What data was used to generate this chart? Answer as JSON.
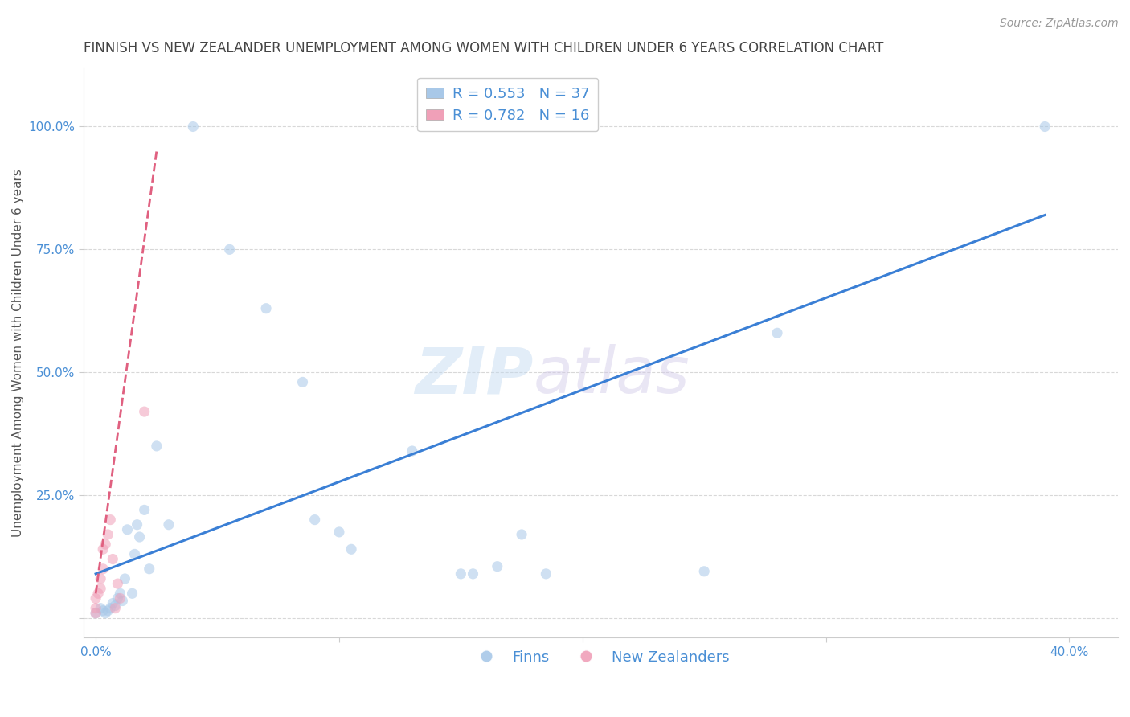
{
  "title": "FINNISH VS NEW ZEALANDER UNEMPLOYMENT AMONG WOMEN WITH CHILDREN UNDER 6 YEARS CORRELATION CHART",
  "source": "Source: ZipAtlas.com",
  "ylabel": "Unemployment Among Women with Children Under 6 years",
  "xlim": [
    -0.005,
    0.42
  ],
  "ylim": [
    -0.04,
    1.12
  ],
  "xticks": [
    0.0,
    0.1,
    0.2,
    0.3,
    0.4
  ],
  "xtick_labels": [
    "0.0%",
    "",
    "",
    "",
    "40.0%"
  ],
  "yticks": [
    0.0,
    0.25,
    0.5,
    0.75,
    1.0
  ],
  "ytick_labels": [
    "",
    "25.0%",
    "50.0%",
    "75.0%",
    "100.0%"
  ],
  "background_color": "#ffffff",
  "grid_color": "#d8d8d8",
  "watermark_zip": "ZIP",
  "watermark_atlas": "atlas",
  "finns_color": "#a8c8e8",
  "nz_color": "#f0a0b8",
  "finns_line_color": "#3a7fd5",
  "nz_line_color": "#e06080",
  "finns_R": 0.553,
  "finns_N": 37,
  "nz_R": 0.782,
  "nz_N": 16,
  "finns_x": [
    0.0,
    0.002,
    0.003,
    0.004,
    0.005,
    0.006,
    0.007,
    0.008,
    0.009,
    0.01,
    0.011,
    0.012,
    0.013,
    0.015,
    0.016,
    0.017,
    0.018,
    0.02,
    0.022,
    0.025,
    0.03,
    0.04,
    0.055,
    0.07,
    0.085,
    0.09,
    0.1,
    0.105,
    0.13,
    0.15,
    0.155,
    0.165,
    0.175,
    0.185,
    0.25,
    0.28,
    0.39
  ],
  "finns_y": [
    0.01,
    0.02,
    0.015,
    0.01,
    0.015,
    0.02,
    0.03,
    0.025,
    0.04,
    0.05,
    0.035,
    0.08,
    0.18,
    0.05,
    0.13,
    0.19,
    0.165,
    0.22,
    0.1,
    0.35,
    0.19,
    1.0,
    0.75,
    0.63,
    0.48,
    0.2,
    0.175,
    0.14,
    0.34,
    0.09,
    0.09,
    0.105,
    0.17,
    0.09,
    0.095,
    0.58,
    1.0
  ],
  "nz_x": [
    0.0,
    0.0,
    0.0,
    0.001,
    0.002,
    0.002,
    0.003,
    0.003,
    0.004,
    0.005,
    0.006,
    0.007,
    0.008,
    0.009,
    0.01,
    0.02
  ],
  "nz_y": [
    0.01,
    0.02,
    0.04,
    0.05,
    0.06,
    0.08,
    0.1,
    0.14,
    0.15,
    0.17,
    0.2,
    0.12,
    0.02,
    0.07,
    0.04,
    0.42
  ],
  "finns_line_x": [
    0.0,
    0.39
  ],
  "finns_line_y": [
    0.09,
    0.82
  ],
  "nz_line_x": [
    0.0,
    0.025
  ],
  "nz_line_y": [
    0.05,
    0.95
  ],
  "title_fontsize": 12,
  "axis_label_fontsize": 11,
  "tick_fontsize": 11,
  "legend_fontsize": 13,
  "source_fontsize": 10,
  "marker_size": 90,
  "marker_alpha": 0.55,
  "title_color": "#444444",
  "tick_color": "#4a8fd5",
  "source_color": "#999999",
  "ylabel_color": "#555555"
}
